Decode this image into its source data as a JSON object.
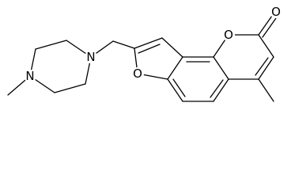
{
  "molecule": {
    "atom_labels": [
      "N",
      "N",
      "O",
      "O",
      "O"
    ]
  }
}
